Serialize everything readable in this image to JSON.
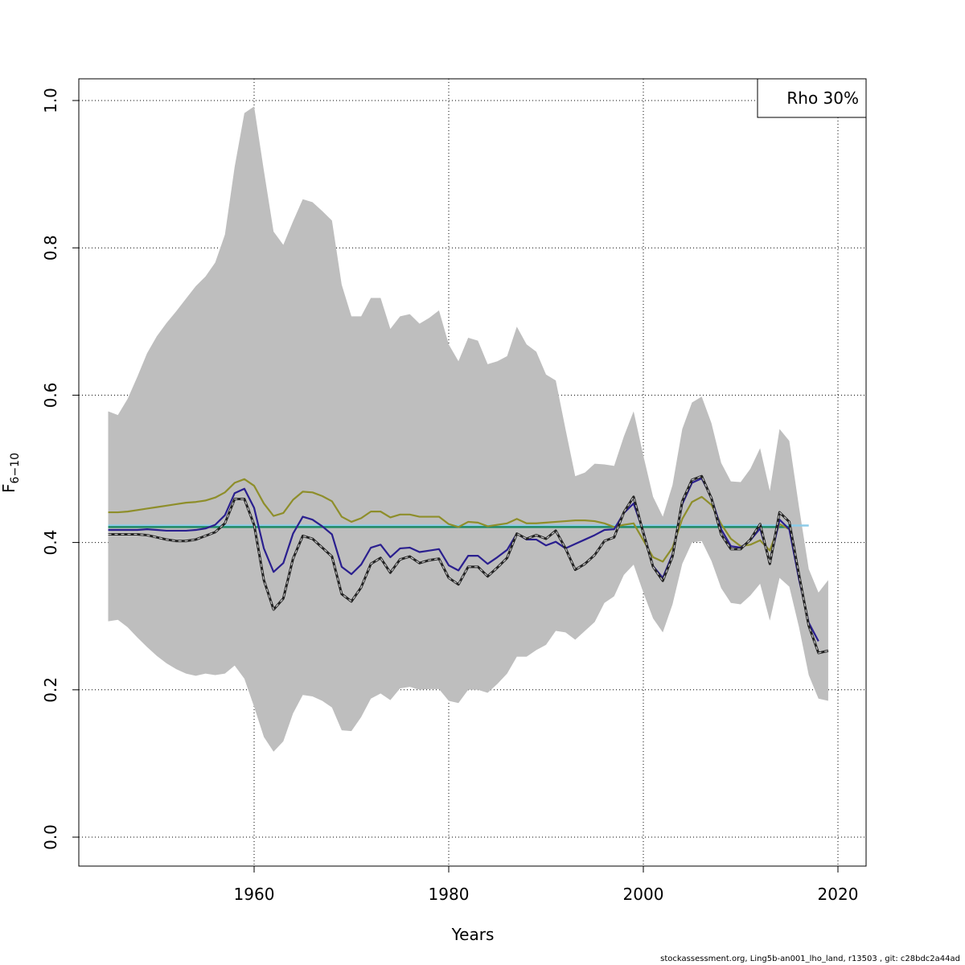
{
  "chart_data": {
    "type": "line",
    "xlabel": "Years",
    "ylabel": {
      "main": "F",
      "sub": "6−10"
    },
    "xlim": [
      1941,
      2023
    ],
    "ylim": [
      -0.04,
      1.03
    ],
    "x_ticks": [
      1960,
      1980,
      2000,
      2020
    ],
    "y_ticks": [
      0.0,
      0.2,
      0.4,
      0.6,
      0.8,
      1.0
    ],
    "y_tick_labels": [
      "0.0",
      "0.2",
      "0.4",
      "0.6",
      "0.8",
      "1.0"
    ],
    "grid": true,
    "legend": {
      "placement": "top-right",
      "text": "Rho 30%"
    },
    "colors": {
      "band": "#bebebe",
      "estimate": "#222222",
      "sim": "#2a1f8f",
      "sim2": "#8e8e2a",
      "mean": "#1e8a63",
      "mean_light": "#8ccbe8"
    },
    "band": {
      "years": [
        1945,
        1946,
        1947,
        1948,
        1949,
        1950,
        1951,
        1952,
        1953,
        1954,
        1955,
        1956,
        1957,
        1958,
        1959,
        1960,
        1961,
        1962,
        1963,
        1964,
        1965,
        1966,
        1967,
        1968,
        1969,
        1970,
        1971,
        1972,
        1973,
        1974,
        1975,
        1976,
        1977,
        1978,
        1979,
        1980,
        1981,
        1982,
        1983,
        1984,
        1985,
        1986,
        1987,
        1988,
        1989,
        1990,
        1991,
        1992,
        1993,
        1994,
        1995,
        1996,
        1997,
        1998,
        1999,
        2000,
        2001,
        2002,
        2003,
        2004,
        2005,
        2006,
        2007,
        2008,
        2009,
        2010,
        2011,
        2012,
        2013,
        2014,
        2015,
        2016,
        2017,
        2018,
        2019
      ],
      "upper": [
        0.578,
        0.573,
        0.595,
        0.625,
        0.657,
        0.68,
        0.698,
        0.714,
        0.731,
        0.748,
        0.761,
        0.78,
        0.818,
        0.91,
        0.983,
        0.992,
        0.905,
        0.822,
        0.804,
        0.836,
        0.866,
        0.862,
        0.85,
        0.837,
        0.75,
        0.707,
        0.707,
        0.732,
        0.732,
        0.69,
        0.707,
        0.71,
        0.697,
        0.705,
        0.715,
        0.669,
        0.646,
        0.678,
        0.674,
        0.642,
        0.646,
        0.653,
        0.693,
        0.669,
        0.659,
        0.628,
        0.62,
        0.554,
        0.49,
        0.495,
        0.507,
        0.506,
        0.504,
        0.544,
        0.578,
        0.518,
        0.462,
        0.435,
        0.478,
        0.554,
        0.59,
        0.598,
        0.562,
        0.508,
        0.483,
        0.482,
        0.5,
        0.528,
        0.47,
        0.554,
        0.538,
        0.448,
        0.364,
        0.332,
        0.349
      ],
      "lower": [
        0.293,
        0.295,
        0.285,
        0.271,
        0.258,
        0.246,
        0.236,
        0.228,
        0.222,
        0.219,
        0.222,
        0.22,
        0.222,
        0.233,
        0.215,
        0.177,
        0.136,
        0.116,
        0.13,
        0.168,
        0.193,
        0.191,
        0.185,
        0.176,
        0.145,
        0.144,
        0.163,
        0.188,
        0.195,
        0.186,
        0.202,
        0.204,
        0.2,
        0.201,
        0.201,
        0.185,
        0.182,
        0.2,
        0.2,
        0.196,
        0.208,
        0.222,
        0.245,
        0.245,
        0.254,
        0.261,
        0.28,
        0.278,
        0.268,
        0.28,
        0.292,
        0.318,
        0.327,
        0.356,
        0.37,
        0.332,
        0.297,
        0.278,
        0.316,
        0.371,
        0.4,
        0.402,
        0.375,
        0.338,
        0.318,
        0.316,
        0.328,
        0.344,
        0.294,
        0.352,
        0.34,
        0.285,
        0.22,
        0.188,
        0.185
      ]
    },
    "series": [
      {
        "key": "sim2",
        "years": [
          1945,
          1946,
          1947,
          1948,
          1949,
          1950,
          1951,
          1952,
          1953,
          1954,
          1955,
          1956,
          1957,
          1958,
          1959,
          1960,
          1961,
          1962,
          1963,
          1964,
          1965,
          1966,
          1967,
          1968,
          1969,
          1970,
          1971,
          1972,
          1973,
          1974,
          1975,
          1976,
          1977,
          1978,
          1979,
          1980,
          1981,
          1982,
          1983,
          1984,
          1985,
          1986,
          1987,
          1988,
          1989,
          1990,
          1991,
          1992,
          1993,
          1994,
          1995,
          1996,
          1997,
          1998,
          1999,
          2000,
          2001,
          2002,
          2003,
          2004,
          2005,
          2006,
          2007,
          2008,
          2009,
          2010,
          2011,
          2012,
          2013,
          2014,
          2015
        ],
        "values": [
          0.441,
          0.441,
          0.442,
          0.444,
          0.446,
          0.448,
          0.45,
          0.452,
          0.454,
          0.455,
          0.457,
          0.461,
          0.468,
          0.481,
          0.486,
          0.477,
          0.453,
          0.436,
          0.44,
          0.458,
          0.469,
          0.468,
          0.463,
          0.456,
          0.435,
          0.428,
          0.433,
          0.442,
          0.442,
          0.434,
          0.438,
          0.438,
          0.435,
          0.435,
          0.435,
          0.425,
          0.421,
          0.428,
          0.427,
          0.422,
          0.424,
          0.426,
          0.432,
          0.426,
          0.426,
          0.427,
          0.428,
          0.429,
          0.43,
          0.43,
          0.429,
          0.426,
          0.421,
          0.424,
          0.426,
          0.403,
          0.38,
          0.374,
          0.393,
          0.432,
          0.455,
          0.462,
          0.451,
          0.425,
          0.405,
          0.395,
          0.397,
          0.403,
          0.389,
          0.425,
          0.418
        ]
      },
      {
        "key": "sim",
        "years": [
          1945,
          1946,
          1947,
          1948,
          1949,
          1950,
          1951,
          1952,
          1953,
          1954,
          1955,
          1956,
          1957,
          1958,
          1959,
          1960,
          1961,
          1962,
          1963,
          1964,
          1965,
          1966,
          1967,
          1968,
          1969,
          1970,
          1971,
          1972,
          1973,
          1974,
          1975,
          1976,
          1977,
          1978,
          1979,
          1980,
          1981,
          1982,
          1983,
          1984,
          1985,
          1986,
          1987,
          1988,
          1989,
          1990,
          1991,
          1992,
          1993,
          1994,
          1995,
          1996,
          1997,
          1998,
          1999,
          2000,
          2001,
          2002,
          2003,
          2004,
          2005,
          2006,
          2007,
          2008,
          2009,
          2010,
          2011,
          2012,
          2013,
          2014,
          2015,
          2016,
          2017,
          2018
        ],
        "values": [
          0.417,
          0.417,
          0.417,
          0.417,
          0.418,
          0.417,
          0.416,
          0.416,
          0.416,
          0.417,
          0.419,
          0.424,
          0.437,
          0.467,
          0.473,
          0.447,
          0.392,
          0.36,
          0.372,
          0.412,
          0.435,
          0.431,
          0.422,
          0.411,
          0.367,
          0.357,
          0.37,
          0.393,
          0.397,
          0.38,
          0.392,
          0.393,
          0.387,
          0.389,
          0.391,
          0.369,
          0.362,
          0.382,
          0.382,
          0.371,
          0.38,
          0.39,
          0.412,
          0.404,
          0.404,
          0.396,
          0.401,
          0.392,
          0.398,
          0.404,
          0.41,
          0.417,
          0.418,
          0.44,
          0.453,
          0.415,
          0.368,
          0.352,
          0.384,
          0.452,
          0.481,
          0.487,
          0.461,
          0.418,
          0.395,
          0.393,
          0.403,
          0.419,
          0.373,
          0.431,
          0.418,
          0.35,
          0.291,
          0.266
        ]
      },
      {
        "key": "estimate",
        "years": [
          1945,
          1946,
          1947,
          1948,
          1949,
          1950,
          1951,
          1952,
          1953,
          1954,
          1955,
          1956,
          1957,
          1958,
          1959,
          1960,
          1961,
          1962,
          1963,
          1964,
          1965,
          1966,
          1967,
          1968,
          1969,
          1970,
          1971,
          1972,
          1973,
          1974,
          1975,
          1976,
          1977,
          1978,
          1979,
          1980,
          1981,
          1982,
          1983,
          1984,
          1985,
          1986,
          1987,
          1988,
          1989,
          1990,
          1991,
          1992,
          1993,
          1994,
          1995,
          1996,
          1997,
          1998,
          1999,
          2000,
          2001,
          2002,
          2003,
          2004,
          2005,
          2006,
          2007,
          2008,
          2009,
          2010,
          2011,
          2012,
          2013,
          2014,
          2015,
          2016,
          2017,
          2018,
          2019
        ],
        "values": [
          0.411,
          0.411,
          0.411,
          0.411,
          0.41,
          0.407,
          0.404,
          0.402,
          0.402,
          0.404,
          0.409,
          0.414,
          0.426,
          0.459,
          0.459,
          0.424,
          0.349,
          0.309,
          0.324,
          0.378,
          0.409,
          0.405,
          0.393,
          0.381,
          0.33,
          0.32,
          0.339,
          0.371,
          0.379,
          0.359,
          0.377,
          0.381,
          0.372,
          0.376,
          0.378,
          0.352,
          0.343,
          0.367,
          0.367,
          0.354,
          0.366,
          0.379,
          0.412,
          0.405,
          0.41,
          0.405,
          0.416,
          0.392,
          0.363,
          0.371,
          0.383,
          0.402,
          0.407,
          0.441,
          0.462,
          0.413,
          0.367,
          0.348,
          0.381,
          0.456,
          0.485,
          0.49,
          0.46,
          0.411,
          0.391,
          0.391,
          0.404,
          0.425,
          0.371,
          0.441,
          0.428,
          0.356,
          0.287,
          0.25,
          0.253
        ]
      }
    ],
    "mean_lines": [
      {
        "key": "mean_light",
        "x": [
          1945,
          2017
        ],
        "y": [
          0.423,
          0.423
        ]
      },
      {
        "key": "mean",
        "x": [
          1945,
          2015
        ],
        "y": [
          0.421,
          0.421
        ]
      }
    ]
  },
  "footer": "stockassessment.org, Ling5b-an001_lho_land, r13503 , git: c28bdc2a44ad"
}
